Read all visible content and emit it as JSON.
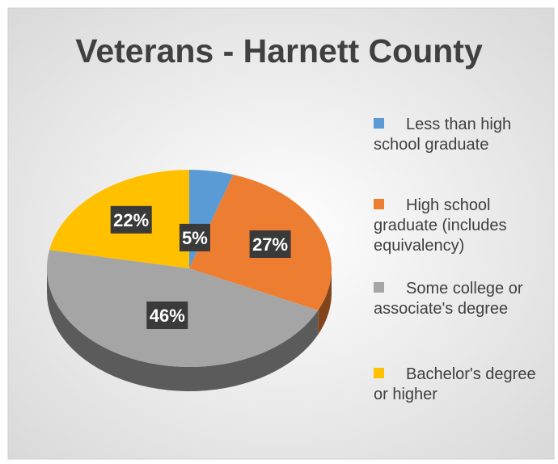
{
  "chart_data": {
    "type": "pie",
    "title": "Veterans - Harnett County",
    "categories": [
      "Less than high school graduate",
      "High school graduate (includes equivalency)",
      "Some college or associate's degree",
      "Bachelor's degree or higher"
    ],
    "values": [
      5,
      27,
      46,
      22
    ],
    "labels": [
      "5%",
      "27%",
      "46%",
      "22%"
    ],
    "colors": [
      "#5B9BD5",
      "#ED7D31",
      "#A5A5A5",
      "#FFC000"
    ],
    "legend_position": "right"
  },
  "legend": {
    "items": [
      {
        "line1": "Less than high",
        "line2": "school graduate",
        "line3": ""
      },
      {
        "line1": "High school",
        "line2": "graduate (includes",
        "line3": "equivalency)"
      },
      {
        "line1": "Some college or",
        "line2": "associate's degree",
        "line3": ""
      },
      {
        "line1": "Bachelor's degree",
        "line2": "or higher",
        "line3": ""
      }
    ]
  }
}
